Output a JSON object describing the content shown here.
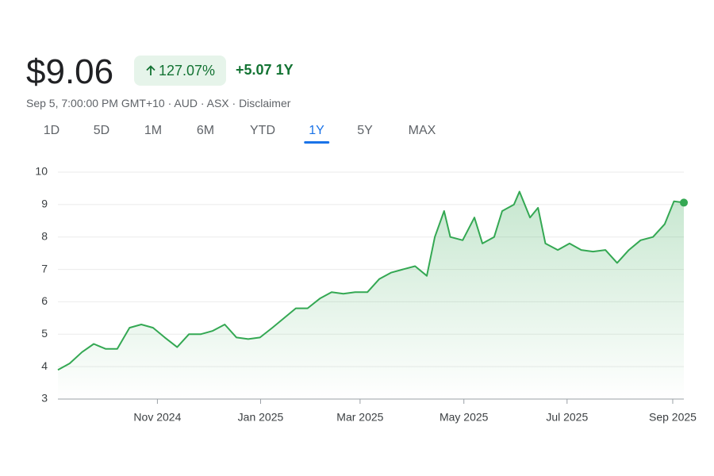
{
  "header": {
    "price": "$9.06",
    "change_percent": "127.07%",
    "change": "+5.07",
    "change_period": "1Y",
    "meta": "Sep 5, 7:00:00 PM GMT+10 · AUD · ASX · ",
    "disclaimer": "Disclaimer"
  },
  "ranges": {
    "items": [
      "1D",
      "5D",
      "1M",
      "6M",
      "YTD",
      "1Y",
      "5Y",
      "MAX"
    ],
    "selected": 5
  },
  "chart_data": {
    "type": "line",
    "color": "#34a853",
    "x": [
      2024.672,
      2024.691,
      2024.711,
      2024.73,
      2024.749,
      2024.768,
      2024.788,
      2024.807,
      2024.826,
      2024.845,
      2024.865,
      2024.884,
      2024.903,
      2024.922,
      2024.942,
      2024.961,
      2024.98,
      2024.999,
      2025.019,
      2025.038,
      2025.057,
      2025.076,
      2025.096,
      2025.115,
      2025.134,
      2025.153,
      2025.173,
      2025.192,
      2025.211,
      2025.23,
      2025.25,
      2025.269,
      2025.282,
      2025.297,
      2025.307,
      2025.327,
      2025.346,
      2025.359,
      2025.378,
      2025.391,
      2025.41,
      2025.419,
      2025.436,
      2025.449,
      2025.461,
      2025.481,
      2025.5,
      2025.519,
      2025.538,
      2025.558,
      2025.577,
      2025.596,
      2025.615,
      2025.635,
      2025.654,
      2025.669,
      2025.685
    ],
    "values": [
      3.9,
      4.1,
      4.45,
      4.7,
      4.55,
      4.55,
      5.2,
      5.3,
      5.2,
      4.9,
      4.6,
      5.0,
      5.0,
      5.1,
      5.3,
      4.9,
      4.85,
      4.9,
      5.2,
      5.5,
      5.8,
      5.8,
      6.1,
      6.3,
      6.25,
      6.3,
      6.3,
      6.7,
      6.9,
      7.0,
      7.1,
      6.8,
      8.0,
      8.8,
      8.0,
      7.9,
      8.6,
      7.8,
      8.0,
      8.8,
      9.0,
      9.4,
      8.6,
      8.9,
      7.8,
      7.6,
      7.8,
      7.6,
      7.55,
      7.6,
      7.2,
      7.6,
      7.9,
      8.0,
      8.4,
      9.1,
      9.06
    ],
    "xlim": [
      2024.672,
      2025.685
    ],
    "xticks": [
      {
        "value": 2024.833,
        "label": "Nov 2024"
      },
      {
        "value": 2025.0,
        "label": "Jan 2025"
      },
      {
        "value": 2025.161,
        "label": "Mar 2025"
      },
      {
        "value": 2025.329,
        "label": "May 2025"
      },
      {
        "value": 2025.496,
        "label": "Jul 2025"
      },
      {
        "value": 2025.667,
        "label": "Sep 2025"
      }
    ],
    "ylim": [
      3,
      10
    ],
    "yticks": [
      3,
      4,
      5,
      6,
      7,
      8,
      9,
      10
    ],
    "grid": true
  }
}
